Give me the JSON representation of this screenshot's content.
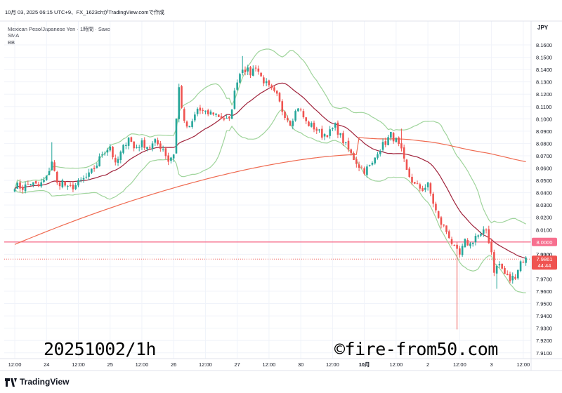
{
  "header": {
    "capture_line": "10月 03, 2025 06:15 UTC+9、FX_1623chがTradingView.comで作成",
    "symbol_line": "Mexican Peso/Japanese Yen · 1時間 · Saxo",
    "indicator_1": "SMA",
    "indicator_2": "BB"
  },
  "footer": {
    "brand": "TradingView"
  },
  "overlay": {
    "date_text": "20251002/1h",
    "copyright_text": "©fire-from50.com"
  },
  "chart_data": {
    "type": "candlestick",
    "currency": "JPY",
    "y_ticks": [
      "8.1600",
      "8.1500",
      "8.1400",
      "8.1300",
      "8.1200",
      "8.1100",
      "8.1000",
      "8.0900",
      "8.0800",
      "8.0700",
      "8.0600",
      "8.0500",
      "8.0400",
      "8.0300",
      "8.0200",
      "8.0100",
      "8.0000",
      "7.9900",
      "7.9800",
      "7.9700",
      "7.9600",
      "7.9500",
      "7.9400",
      "7.9300",
      "7.9200",
      "7.9100"
    ],
    "ylim": [
      7.905,
      8.17
    ],
    "x_ticks": [
      {
        "label": "12:00",
        "bar": 0
      },
      {
        "label": "24",
        "bar": 12
      },
      {
        "label": "12:00",
        "bar": 24
      },
      {
        "label": "25",
        "bar": 36
      },
      {
        "label": "12:00",
        "bar": 48
      },
      {
        "label": "26",
        "bar": 60
      },
      {
        "label": "12:00",
        "bar": 72
      },
      {
        "label": "27",
        "bar": 84
      },
      {
        "label": "12:00",
        "bar": 96
      },
      {
        "label": "30",
        "bar": 108
      },
      {
        "label": "12:00",
        "bar": 120
      },
      {
        "label": "10月",
        "bar": 132
      },
      {
        "label": "12:00",
        "bar": 144
      },
      {
        "label": "2",
        "bar": 156
      },
      {
        "label": "12:00",
        "bar": 168
      },
      {
        "label": "3",
        "bar": 180
      },
      {
        "label": "12:00",
        "bar": 192
      }
    ],
    "horizontal_line": {
      "value": 8.0,
      "label": "8.0000",
      "color": "#f7708f"
    },
    "last_price": {
      "value": 7.9861,
      "label": "7.9861",
      "countdown": "44:44",
      "color": "#ef5350"
    },
    "partial_tick_label": "7.9900",
    "colors": {
      "up": "#26a69a",
      "down": "#ef5350",
      "bb": "#9fd49b",
      "sma_fast": "#a0243c",
      "sma_slow": "#ef6a50"
    },
    "close_anchors": [
      [
        0,
        8.046
      ],
      [
        3,
        8.044
      ],
      [
        6,
        8.048
      ],
      [
        9,
        8.045
      ],
      [
        12,
        8.052
      ],
      [
        14,
        8.066
      ],
      [
        16,
        8.047
      ],
      [
        18,
        8.049
      ],
      [
        20,
        8.043
      ],
      [
        23,
        8.046
      ],
      [
        26,
        8.051
      ],
      [
        28,
        8.054
      ],
      [
        31,
        8.063
      ],
      [
        33,
        8.072
      ],
      [
        36,
        8.078
      ],
      [
        38,
        8.062
      ],
      [
        40,
        8.072
      ],
      [
        43,
        8.086
      ],
      [
        45,
        8.076
      ],
      [
        48,
        8.08
      ],
      [
        51,
        8.077
      ],
      [
        53,
        8.081
      ],
      [
        56,
        8.076
      ],
      [
        58,
        8.066
      ],
      [
        60,
        8.072
      ],
      [
        61,
        8.1
      ],
      [
        62,
        8.125
      ],
      [
        64,
        8.096
      ],
      [
        66,
        8.092
      ],
      [
        69,
        8.108
      ],
      [
        72,
        8.104
      ],
      [
        75,
        8.105
      ],
      [
        78,
        8.101
      ],
      [
        81,
        8.098
      ],
      [
        82,
        8.11
      ],
      [
        84,
        8.132
      ],
      [
        86,
        8.142
      ],
      [
        89,
        8.137
      ],
      [
        91,
        8.143
      ],
      [
        93,
        8.134
      ],
      [
        96,
        8.125
      ],
      [
        99,
        8.118
      ],
      [
        101,
        8.107
      ],
      [
        104,
        8.097
      ],
      [
        107,
        8.11
      ],
      [
        110,
        8.097
      ],
      [
        113,
        8.093
      ],
      [
        116,
        8.087
      ],
      [
        119,
        8.089
      ],
      [
        121,
        8.094
      ],
      [
        124,
        8.082
      ],
      [
        127,
        8.071
      ],
      [
        130,
        8.062
      ],
      [
        132,
        8.058
      ],
      [
        135,
        8.063
      ],
      [
        137,
        8.074
      ],
      [
        140,
        8.081
      ],
      [
        142,
        8.087
      ],
      [
        144,
        8.082
      ],
      [
        146,
        8.073
      ],
      [
        148,
        8.057
      ],
      [
        151,
        8.046
      ],
      [
        154,
        8.043
      ],
      [
        156,
        8.046
      ],
      [
        158,
        8.032
      ],
      [
        160,
        8.018
      ],
      [
        162,
        8.012
      ],
      [
        164,
        8.005
      ],
      [
        166,
        7.994
      ],
      [
        168,
        7.989
      ],
      [
        170,
        8.0
      ],
      [
        172,
        7.998
      ],
      [
        174,
        8.005
      ],
      [
        176,
        8.005
      ],
      [
        178,
        8.01
      ],
      [
        180,
        7.992
      ],
      [
        181,
        7.977
      ],
      [
        183,
        7.982
      ],
      [
        185,
        7.974
      ],
      [
        187,
        7.969
      ],
      [
        189,
        7.973
      ],
      [
        191,
        7.984
      ],
      [
        193,
        7.986
      ]
    ],
    "wicks": [
      {
        "bar": 167,
        "low": 7.929
      },
      {
        "bar": 86,
        "high": 8.151
      },
      {
        "bar": 14,
        "high": 8.081
      },
      {
        "bar": 146,
        "high": 8.092
      },
      {
        "bar": 182,
        "low": 7.962
      },
      {
        "bar": 166,
        "high": 7.998
      }
    ]
  }
}
